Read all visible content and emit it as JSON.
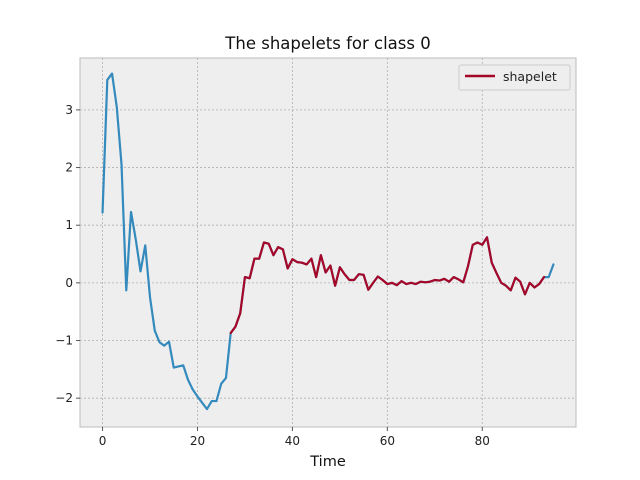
{
  "chart_data": {
    "type": "line",
    "title": "The shapelets for class 0",
    "xlabel": "Time",
    "ylabel": "",
    "xlim": [
      -4.75,
      99.75
    ],
    "ylim": [
      -2.5,
      3.9
    ],
    "xticks": [
      0,
      20,
      40,
      60,
      80
    ],
    "yticks": [
      -2,
      -1,
      0,
      1,
      2,
      3
    ],
    "grid": true,
    "legend_position": "top-right",
    "colors": {
      "series": "#348ABD",
      "shapelet": "#A60628",
      "background": "#EEEEEE",
      "grid": "#B0B0B0",
      "frame": "#BCBCBC"
    },
    "series": [
      {
        "name": "",
        "x": [
          0,
          1,
          2,
          3,
          4,
          5,
          6,
          7,
          8,
          9,
          10,
          11,
          12,
          13,
          14,
          15,
          16,
          17,
          18,
          19,
          20,
          21,
          22,
          23,
          24,
          25,
          26,
          27,
          28,
          29,
          30,
          31,
          32,
          33,
          34,
          35,
          36,
          37,
          38,
          39,
          40,
          41,
          42,
          43,
          44,
          45,
          46,
          47,
          48,
          49,
          50,
          51,
          52,
          53,
          54,
          55,
          56,
          57,
          58,
          59,
          60,
          61,
          62,
          63,
          64,
          65,
          66,
          67,
          68,
          69,
          70,
          71,
          72,
          73,
          74,
          75,
          76,
          77,
          78,
          79,
          80,
          81,
          82,
          83,
          84,
          85,
          86,
          87,
          88,
          89,
          90,
          91,
          92,
          93,
          94,
          95
        ],
        "values": [
          1.22,
          3.52,
          3.63,
          3.05,
          2.05,
          -0.13,
          1.23,
          0.75,
          0.2,
          0.65,
          -0.25,
          -0.83,
          -1.03,
          -1.09,
          -1.02,
          -1.47,
          -1.45,
          -1.43,
          -1.68,
          -1.85,
          -1.97,
          -2.08,
          -2.19,
          -2.05,
          -2.05,
          -1.75,
          -1.65,
          -0.87,
          -0.76,
          -0.53,
          0.1,
          0.08,
          0.42,
          0.42,
          0.7,
          0.68,
          0.48,
          0.62,
          0.58,
          0.25,
          0.41,
          0.36,
          0.35,
          0.32,
          0.42,
          0.1,
          0.48,
          0.18,
          0.3,
          -0.05,
          0.27,
          0.15,
          0.05,
          0.05,
          0.15,
          0.14,
          -0.12,
          0.0,
          0.11,
          0.05,
          -0.02,
          0.0,
          -0.04,
          0.03,
          -0.02,
          0.0,
          -0.02,
          0.02,
          0.01,
          0.02,
          0.05,
          0.04,
          0.07,
          0.02,
          0.1,
          0.06,
          0.01,
          0.29,
          0.66,
          0.7,
          0.66,
          0.79,
          0.35,
          0.17,
          0.0,
          -0.05,
          -0.13,
          0.09,
          0.02,
          -0.2,
          0.0,
          -0.08,
          -0.02,
          0.1,
          0.1,
          0.32
        ]
      },
      {
        "name": "shapelet",
        "x": [
          27,
          28,
          29,
          30,
          31,
          32,
          33,
          34,
          35,
          36,
          37,
          38,
          39,
          40,
          41,
          42,
          43,
          44,
          45,
          46,
          47,
          48,
          49,
          50,
          51,
          52,
          53,
          54,
          55,
          56,
          57,
          58,
          59,
          60,
          61,
          62,
          63,
          64,
          65,
          66,
          67,
          68,
          69,
          70,
          71,
          72,
          73,
          74,
          75,
          76,
          77,
          78,
          79,
          80,
          81,
          82,
          83,
          84,
          85,
          86,
          87,
          88,
          89,
          90,
          91,
          92,
          93
        ],
        "values": [
          -0.87,
          -0.76,
          -0.53,
          0.1,
          0.08,
          0.42,
          0.42,
          0.7,
          0.68,
          0.48,
          0.62,
          0.58,
          0.25,
          0.41,
          0.36,
          0.35,
          0.32,
          0.42,
          0.1,
          0.48,
          0.18,
          0.3,
          -0.05,
          0.27,
          0.15,
          0.05,
          0.05,
          0.15,
          0.14,
          -0.12,
          0.0,
          0.11,
          0.05,
          -0.02,
          0.0,
          -0.04,
          0.03,
          -0.02,
          0.0,
          -0.02,
          0.02,
          0.01,
          0.02,
          0.05,
          0.04,
          0.07,
          0.02,
          0.1,
          0.06,
          0.01,
          0.29,
          0.66,
          0.7,
          0.66,
          0.79,
          0.35,
          0.17,
          0.0,
          -0.05,
          -0.13,
          0.09,
          0.02,
          -0.2,
          0.0,
          -0.08,
          -0.02,
          0.1
        ]
      }
    ],
    "legend": [
      "shapelet"
    ]
  }
}
